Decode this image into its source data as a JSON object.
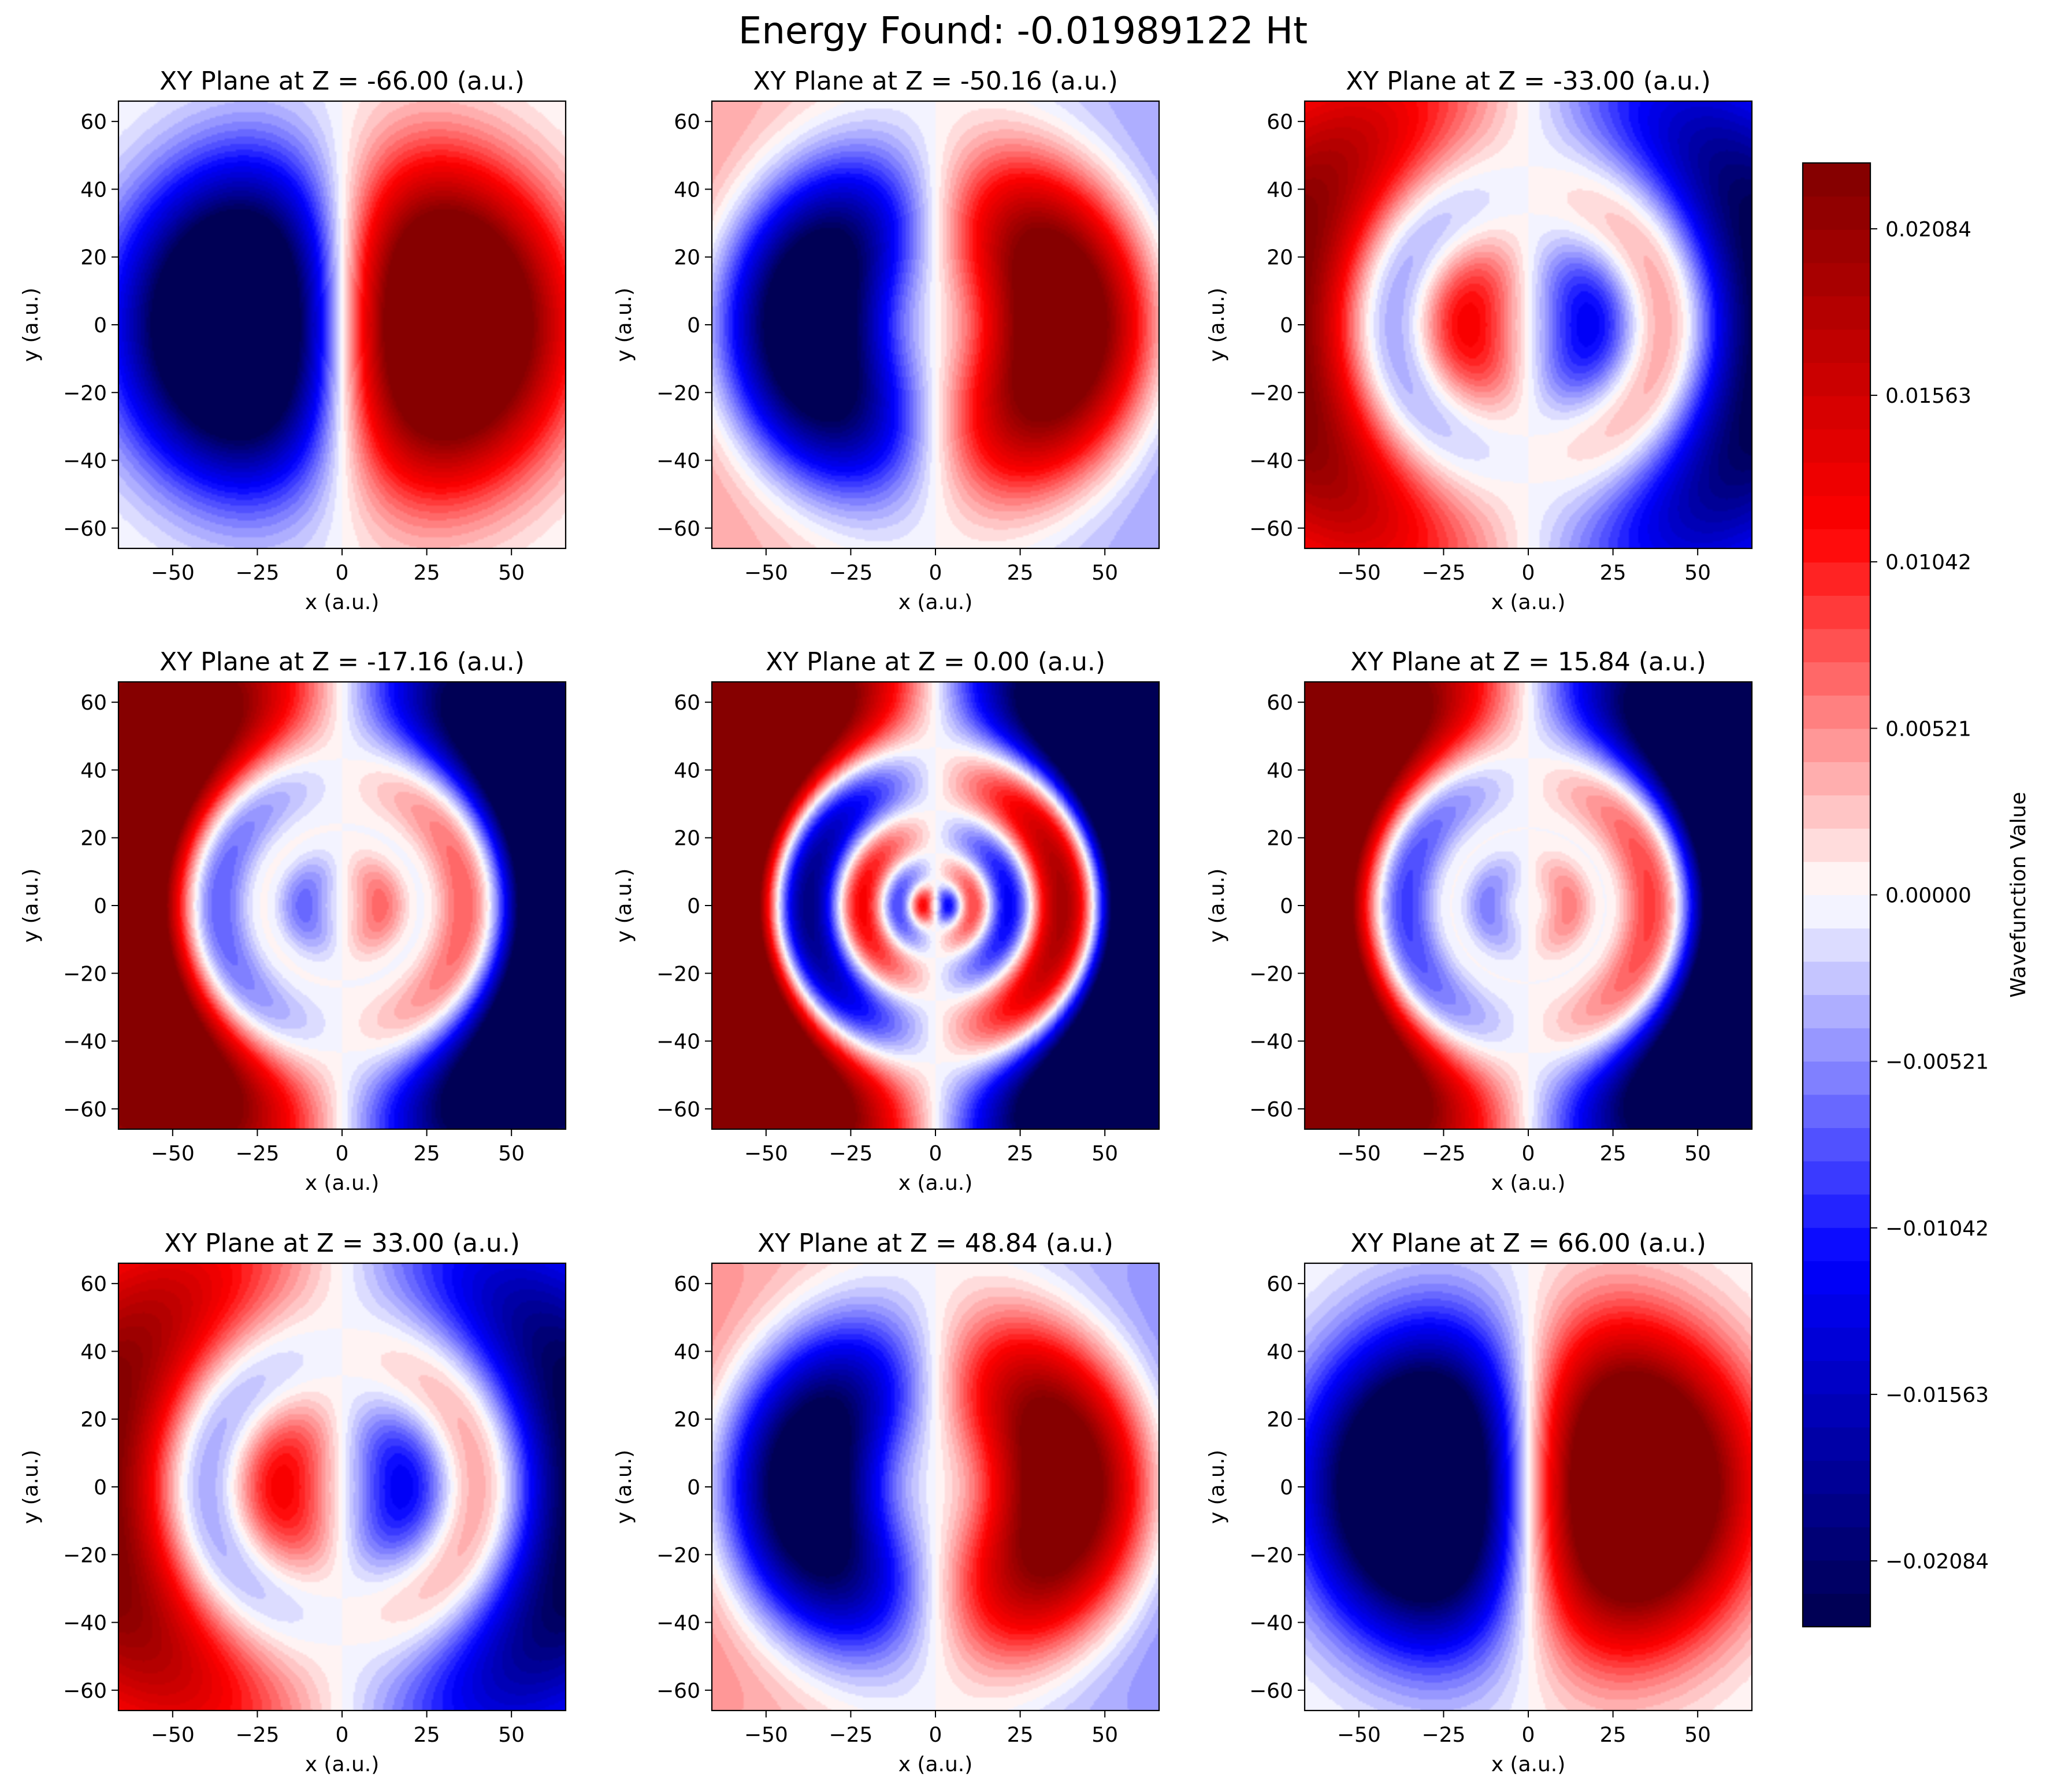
{
  "figure": {
    "title": "Energy Found: -0.01989122 Ht"
  },
  "colorbar": {
    "label": "Wavefunction Value",
    "ticks": [
      "0.02084",
      "0.01563",
      "0.01042",
      "0.00521",
      "0.00000",
      "−0.00521",
      "−0.01042",
      "−0.01563",
      "−0.02084"
    ],
    "tick_values": [
      0.02084,
      0.01563,
      0.01042,
      0.00521,
      0.0,
      -0.00521,
      -0.01042,
      -0.01563,
      -0.02084
    ],
    "vmin": -0.0229,
    "vmax": 0.0229,
    "levels": 44,
    "colormap": "seismic (dark blue → blue → white → red → dark red)"
  },
  "chart_data": [
    {
      "type": "heatmap",
      "title": "XY Plane at Z = -66.00 (a.u.)",
      "xlabel": "x (a.u.)",
      "ylabel": "y (a.u.)",
      "z": -66.0,
      "xlim": [
        -66,
        66
      ],
      "ylim": [
        -66,
        66
      ],
      "xticks": [
        "−50",
        "−25",
        "0",
        "25",
        "50"
      ],
      "yticks": [
        "60",
        "40",
        "20",
        "0",
        "−20",
        "−40",
        "−60"
      ],
      "xtick_values": [
        -50,
        -25,
        0,
        25,
        50
      ],
      "ytick_values": [
        60,
        40,
        20,
        0,
        -20,
        -40,
        -60
      ]
    },
    {
      "type": "heatmap",
      "title": "XY Plane at Z = -50.16 (a.u.)",
      "xlabel": "x (a.u.)",
      "ylabel": "y (a.u.)",
      "z": -50.16,
      "xlim": [
        -66,
        66
      ],
      "ylim": [
        -66,
        66
      ],
      "xticks": [
        "−50",
        "−25",
        "0",
        "25",
        "50"
      ],
      "yticks": [
        "60",
        "40",
        "20",
        "0",
        "−20",
        "−40",
        "−60"
      ],
      "xtick_values": [
        -50,
        -25,
        0,
        25,
        50
      ],
      "ytick_values": [
        60,
        40,
        20,
        0,
        -20,
        -40,
        -60
      ]
    },
    {
      "type": "heatmap",
      "title": "XY Plane at Z = -33.00 (a.u.)",
      "xlabel": "x (a.u.)",
      "ylabel": "y (a.u.)",
      "z": -33.0,
      "xlim": [
        -66,
        66
      ],
      "ylim": [
        -66,
        66
      ],
      "xticks": [
        "−50",
        "−25",
        "0",
        "25",
        "50"
      ],
      "yticks": [
        "60",
        "40",
        "20",
        "0",
        "−20",
        "−40",
        "−60"
      ],
      "xtick_values": [
        -50,
        -25,
        0,
        25,
        50
      ],
      "ytick_values": [
        60,
        40,
        20,
        0,
        -20,
        -40,
        -60
      ]
    },
    {
      "type": "heatmap",
      "title": "XY Plane at Z = -17.16 (a.u.)",
      "xlabel": "x (a.u.)",
      "ylabel": "y (a.u.)",
      "z": -17.16,
      "xlim": [
        -66,
        66
      ],
      "ylim": [
        -66,
        66
      ],
      "xticks": [
        "−50",
        "−25",
        "0",
        "25",
        "50"
      ],
      "yticks": [
        "60",
        "40",
        "20",
        "0",
        "−20",
        "−40",
        "−60"
      ],
      "xtick_values": [
        -50,
        -25,
        0,
        25,
        50
      ],
      "ytick_values": [
        60,
        40,
        20,
        0,
        -20,
        -40,
        -60
      ]
    },
    {
      "type": "heatmap",
      "title": "XY Plane at Z = 0.00 (a.u.)",
      "xlabel": "x (a.u.)",
      "ylabel": "y (a.u.)",
      "z": 0.0,
      "xlim": [
        -66,
        66
      ],
      "ylim": [
        -66,
        66
      ],
      "xticks": [
        "−50",
        "−25",
        "0",
        "25",
        "50"
      ],
      "yticks": [
        "60",
        "40",
        "20",
        "0",
        "−20",
        "−40",
        "−60"
      ],
      "xtick_values": [
        -50,
        -25,
        0,
        25,
        50
      ],
      "ytick_values": [
        60,
        40,
        20,
        0,
        -20,
        -40,
        -60
      ]
    },
    {
      "type": "heatmap",
      "title": "XY Plane at Z = 15.84 (a.u.)",
      "xlabel": "x (a.u.)",
      "ylabel": "y (a.u.)",
      "z": 15.84,
      "xlim": [
        -66,
        66
      ],
      "ylim": [
        -66,
        66
      ],
      "xticks": [
        "−50",
        "−25",
        "0",
        "25",
        "50"
      ],
      "yticks": [
        "60",
        "40",
        "20",
        "0",
        "−20",
        "−40",
        "−60"
      ],
      "xtick_values": [
        -50,
        -25,
        0,
        25,
        50
      ],
      "ytick_values": [
        60,
        40,
        20,
        0,
        -20,
        -40,
        -60
      ]
    },
    {
      "type": "heatmap",
      "title": "XY Plane at Z = 33.00 (a.u.)",
      "xlabel": "x (a.u.)",
      "ylabel": "y (a.u.)",
      "z": 33.0,
      "xlim": [
        -66,
        66
      ],
      "ylim": [
        -66,
        66
      ],
      "xticks": [
        "−50",
        "−25",
        "0",
        "25",
        "50"
      ],
      "yticks": [
        "60",
        "40",
        "20",
        "0",
        "−20",
        "−40",
        "−60"
      ],
      "xtick_values": [
        -50,
        -25,
        0,
        25,
        50
      ],
      "ytick_values": [
        60,
        40,
        20,
        0,
        -20,
        -40,
        -60
      ]
    },
    {
      "type": "heatmap",
      "title": "XY Plane at Z = 48.84 (a.u.)",
      "xlabel": "x (a.u.)",
      "ylabel": "y (a.u.)",
      "z": 48.84,
      "xlim": [
        -66,
        66
      ],
      "ylim": [
        -66,
        66
      ],
      "xticks": [
        "−50",
        "−25",
        "0",
        "25",
        "50"
      ],
      "yticks": [
        "60",
        "40",
        "20",
        "0",
        "−20",
        "−40",
        "−60"
      ],
      "xtick_values": [
        -50,
        -25,
        0,
        25,
        50
      ],
      "ytick_values": [
        60,
        40,
        20,
        0,
        -20,
        -40,
        -60
      ]
    },
    {
      "type": "heatmap",
      "title": "XY Plane at Z = 66.00 (a.u.)",
      "xlabel": "x (a.u.)",
      "ylabel": "y (a.u.)",
      "z": 66.0,
      "xlim": [
        -66,
        66
      ],
      "ylim": [
        -66,
        66
      ],
      "xticks": [
        "−50",
        "−25",
        "0",
        "25",
        "50"
      ],
      "yticks": [
        "60",
        "40",
        "20",
        "0",
        "−20",
        "−40",
        "−60"
      ],
      "xtick_values": [
        -50,
        -25,
        0,
        25,
        50
      ],
      "ytick_values": [
        60,
        40,
        20,
        0,
        -20,
        -40,
        -60
      ]
    }
  ]
}
